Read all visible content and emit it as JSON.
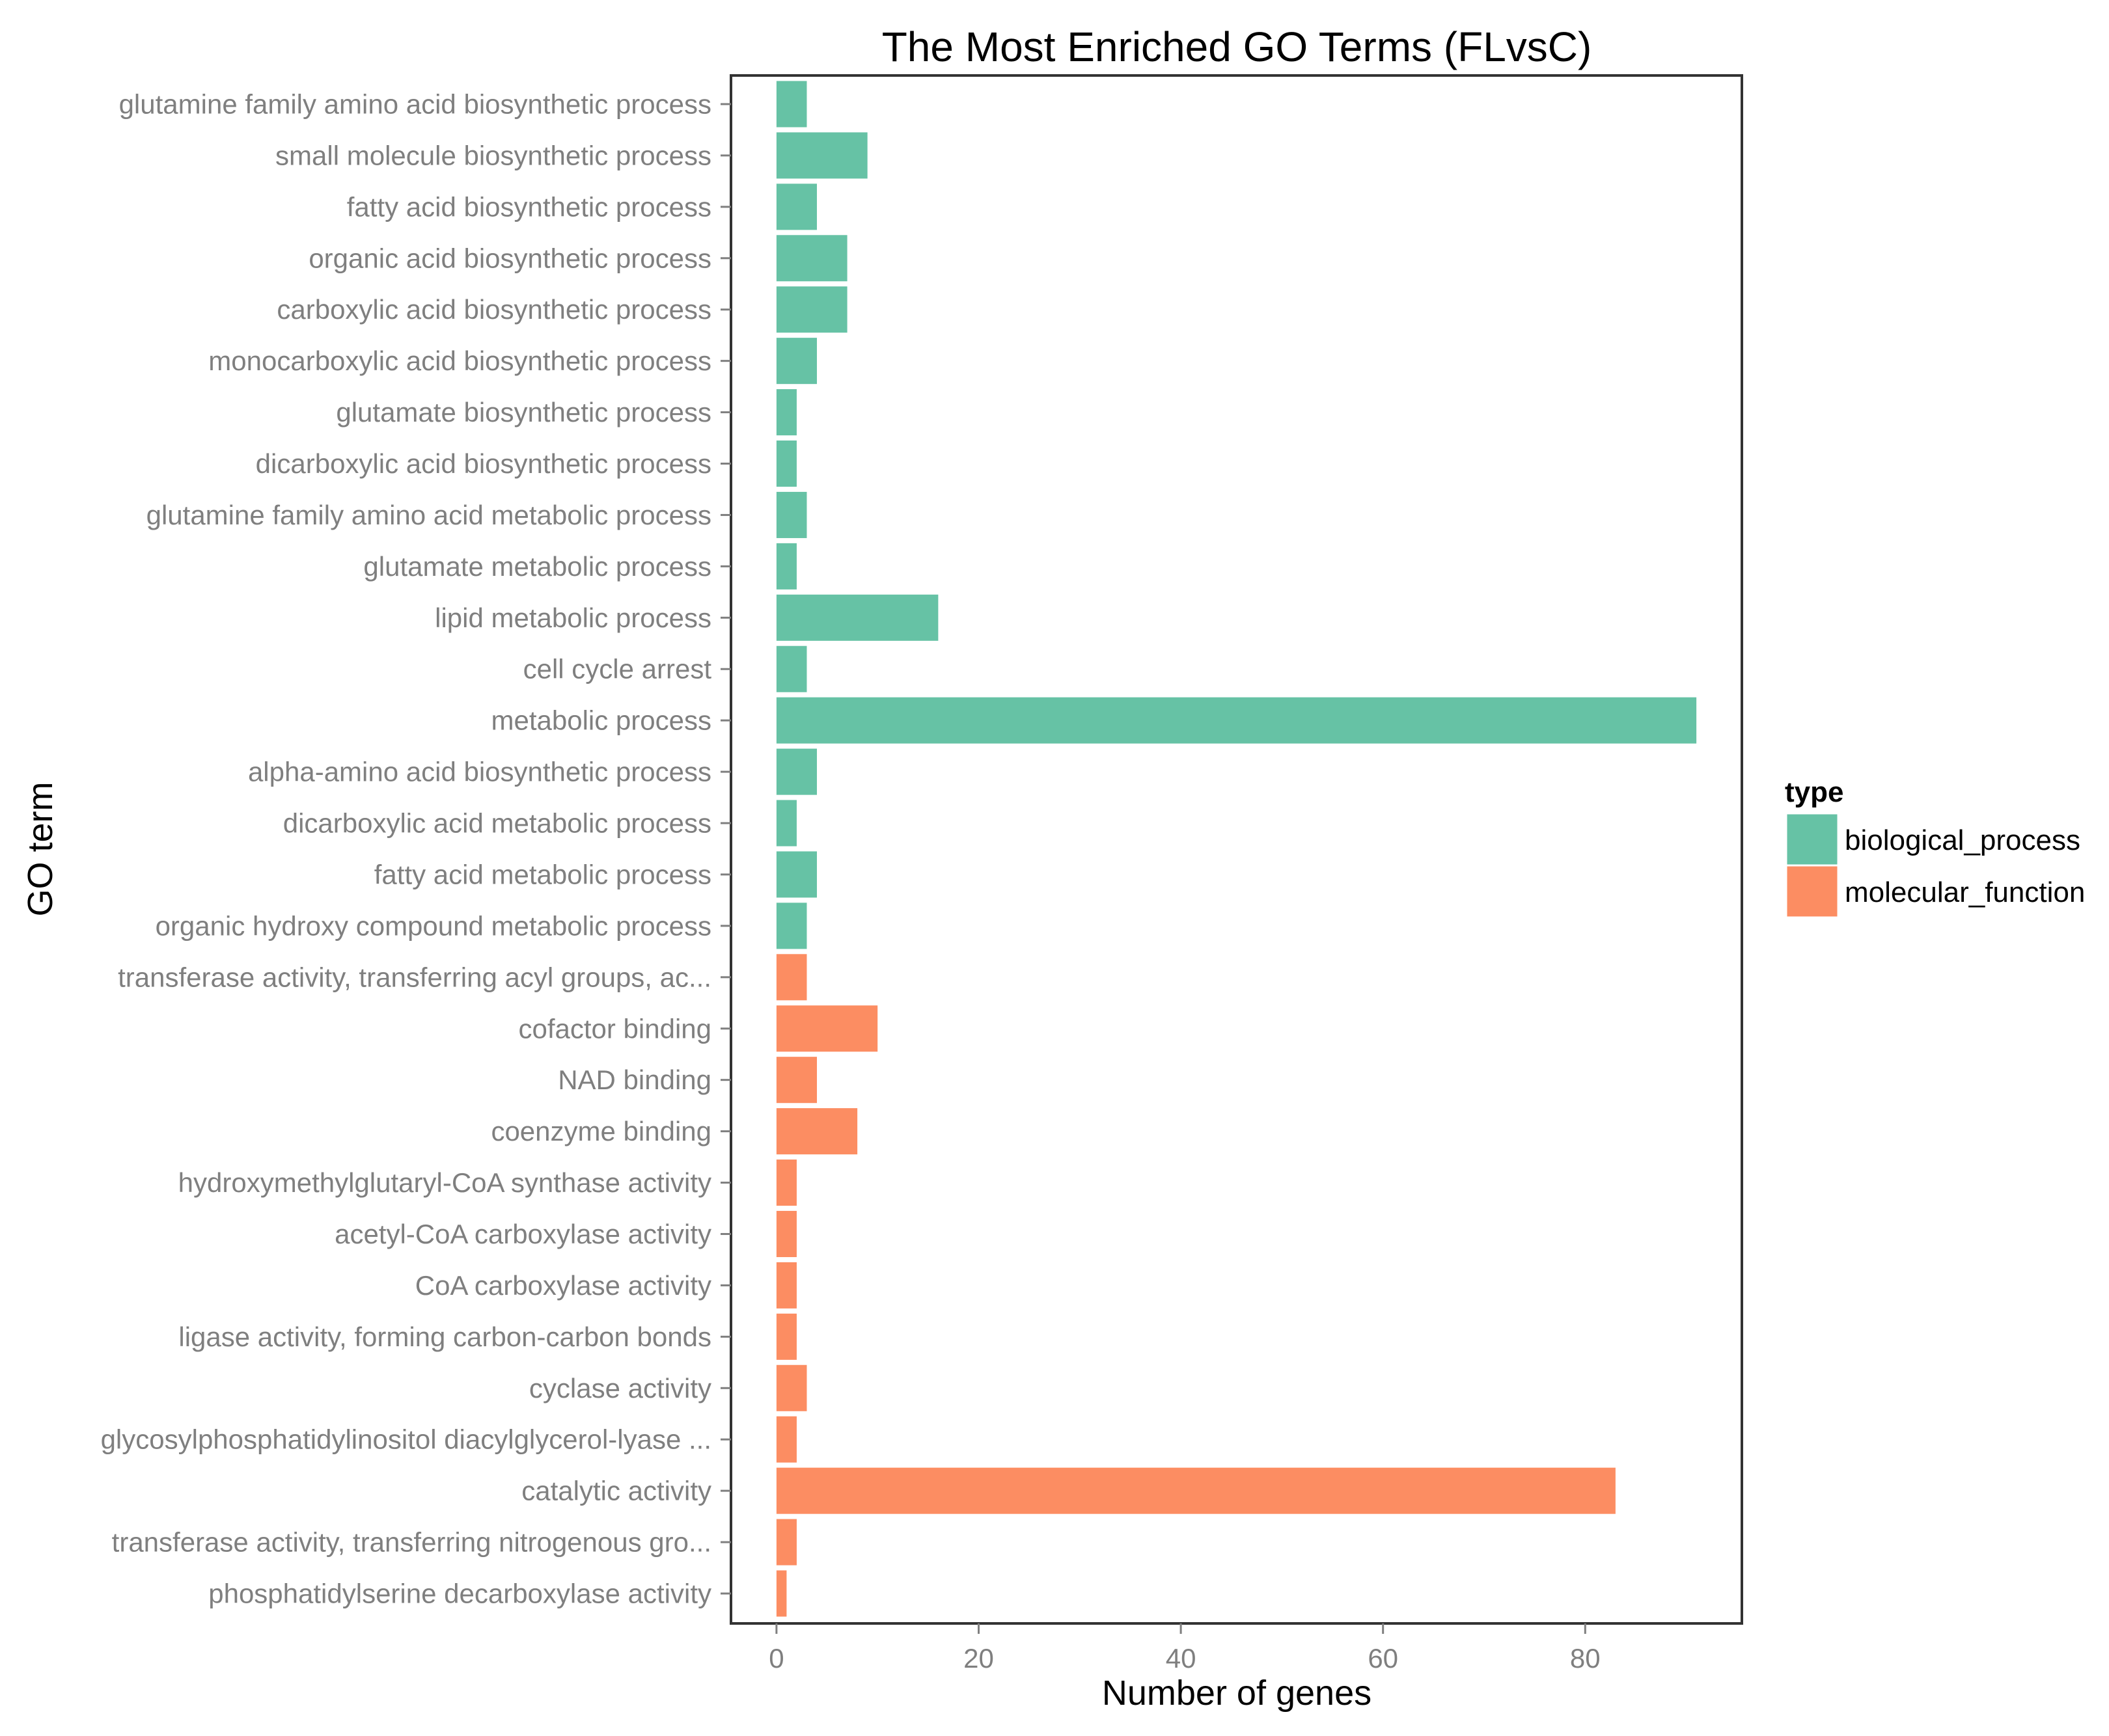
{
  "chart_data": {
    "type": "bar",
    "orientation": "horizontal",
    "title": "The Most Enriched GO Terms (FLvsC)",
    "xlabel": "Number of genes",
    "ylabel": "GO term",
    "xlim": [
      -4.5,
      95.5
    ],
    "xticks": [
      0,
      20,
      40,
      60,
      80
    ],
    "grid": false,
    "legend": {
      "title": "type",
      "placement": "right",
      "entries": [
        {
          "name": "biological_process",
          "color": "#66c2a5"
        },
        {
          "name": "molecular_function",
          "color": "#fc8d62"
        }
      ]
    },
    "bars": [
      {
        "label": "glutamine family amino acid biosynthetic process",
        "value": 3,
        "type": "biological_process"
      },
      {
        "label": "small molecule biosynthetic process",
        "value": 9,
        "type": "biological_process"
      },
      {
        "label": "fatty acid biosynthetic process",
        "value": 4,
        "type": "biological_process"
      },
      {
        "label": "organic acid biosynthetic process",
        "value": 7,
        "type": "biological_process"
      },
      {
        "label": "carboxylic acid biosynthetic process",
        "value": 7,
        "type": "biological_process"
      },
      {
        "label": "monocarboxylic acid biosynthetic process",
        "value": 4,
        "type": "biological_process"
      },
      {
        "label": "glutamate biosynthetic process",
        "value": 2,
        "type": "biological_process"
      },
      {
        "label": "dicarboxylic acid biosynthetic process",
        "value": 2,
        "type": "biological_process"
      },
      {
        "label": "glutamine family amino acid metabolic process",
        "value": 3,
        "type": "biological_process"
      },
      {
        "label": "glutamate metabolic process",
        "value": 2,
        "type": "biological_process"
      },
      {
        "label": "lipid metabolic process",
        "value": 16,
        "type": "biological_process"
      },
      {
        "label": "cell cycle arrest",
        "value": 3,
        "type": "biological_process"
      },
      {
        "label": "metabolic process",
        "value": 91,
        "type": "biological_process"
      },
      {
        "label": "alpha-amino acid biosynthetic process",
        "value": 4,
        "type": "biological_process"
      },
      {
        "label": "dicarboxylic acid metabolic process",
        "value": 2,
        "type": "biological_process"
      },
      {
        "label": "fatty acid metabolic process",
        "value": 4,
        "type": "biological_process"
      },
      {
        "label": "organic hydroxy compound metabolic process",
        "value": 3,
        "type": "biological_process"
      },
      {
        "label": "transferase activity, transferring acyl groups, ac...",
        "value": 3,
        "type": "molecular_function"
      },
      {
        "label": "cofactor binding",
        "value": 10,
        "type": "molecular_function"
      },
      {
        "label": "NAD binding",
        "value": 4,
        "type": "molecular_function"
      },
      {
        "label": "coenzyme binding",
        "value": 8,
        "type": "molecular_function"
      },
      {
        "label": "hydroxymethylglutaryl-CoA synthase activity",
        "value": 2,
        "type": "molecular_function"
      },
      {
        "label": "acetyl-CoA carboxylase activity",
        "value": 2,
        "type": "molecular_function"
      },
      {
        "label": "CoA carboxylase activity",
        "value": 2,
        "type": "molecular_function"
      },
      {
        "label": "ligase activity, forming carbon-carbon bonds",
        "value": 2,
        "type": "molecular_function"
      },
      {
        "label": "cyclase activity",
        "value": 3,
        "type": "molecular_function"
      },
      {
        "label": "glycosylphosphatidylinositol diacylglycerol-lyase ...",
        "value": 2,
        "type": "molecular_function"
      },
      {
        "label": "catalytic activity",
        "value": 83,
        "type": "molecular_function"
      },
      {
        "label": "transferase activity, transferring nitrogenous gro...",
        "value": 2,
        "type": "molecular_function"
      },
      {
        "label": "phosphatidylserine decarboxylase activity",
        "value": 1,
        "type": "molecular_function"
      }
    ]
  }
}
